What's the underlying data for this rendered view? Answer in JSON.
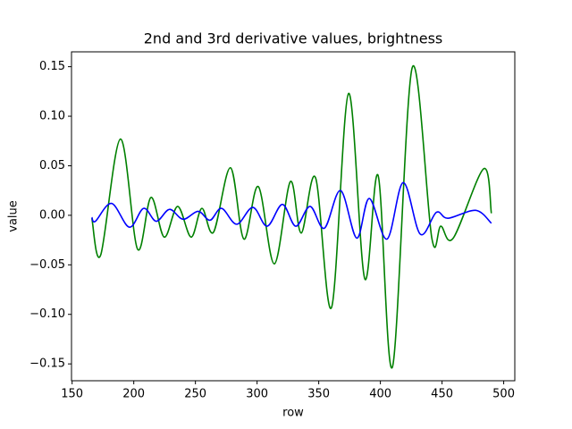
{
  "chart_data": {
    "type": "line",
    "title": "2nd and 3rd derivative values, brightness",
    "xlabel": "row",
    "ylabel": "value",
    "xlim": [
      149.5,
      509
    ],
    "ylim": [
      -0.167,
      0.165
    ],
    "xticks": [
      150,
      200,
      250,
      300,
      350,
      400,
      450,
      500
    ],
    "yticks": [
      {
        "value": -0.15,
        "label": "−0.15"
      },
      {
        "value": -0.1,
        "label": "−0.10"
      },
      {
        "value": -0.05,
        "label": "−0.05"
      },
      {
        "value": 0,
        "label": "0.00"
      },
      {
        "value": 0.05,
        "label": "0.05"
      },
      {
        "value": 0.1,
        "label": "0.10"
      },
      {
        "value": 0.15,
        "label": "0.15"
      }
    ],
    "series": [
      {
        "color": "#008000",
        "x": [
          166,
          173.2,
          189.2,
          203,
          213.9,
          224.7,
          235.6,
          246.5,
          255.2,
          264.7,
          278.4,
          289.3,
          301,
          314,
          327,
          335.8,
          347.4,
          360.4,
          374.2,
          387.3,
          398.2,
          409.8,
          425.8,
          441.7,
          449,
          459.1,
          483.8,
          490
        ],
        "values": [
          -0.003,
          -0.04,
          0.077,
          -0.034,
          0.018,
          -0.022,
          0.009,
          -0.022,
          0.007,
          -0.017,
          0.048,
          -0.024,
          0.029,
          -0.049,
          0.034,
          -0.018,
          0.038,
          -0.093,
          0.123,
          -0.064,
          0.04,
          -0.153,
          0.149,
          -0.023,
          -0.011,
          -0.023,
          0.047,
          0.002
        ]
      },
      {
        "color": "#0000ff",
        "x": [
          166,
          168.9,
          182,
          196.4,
          208,
          218.2,
          229,
          240,
          252.3,
          261.8,
          271.2,
          283.5,
          296.6,
          308.2,
          320.5,
          331.4,
          343,
          354.6,
          367.7,
          380.8,
          391,
          405.4,
          418.5,
          432.3,
          445.4,
          454.8,
          477.3,
          490
        ],
        "values": [
          -0.002,
          -0.006,
          0.012,
          -0.012,
          0.007,
          -0.006,
          0.006,
          -0.004,
          0.004,
          -0.005,
          0.007,
          -0.009,
          0.008,
          -0.011,
          0.011,
          -0.011,
          0.009,
          -0.013,
          0.025,
          -0.023,
          0.017,
          -0.024,
          0.033,
          -0.019,
          0.003,
          -0.003,
          0.005,
          -0.008
        ]
      }
    ]
  }
}
